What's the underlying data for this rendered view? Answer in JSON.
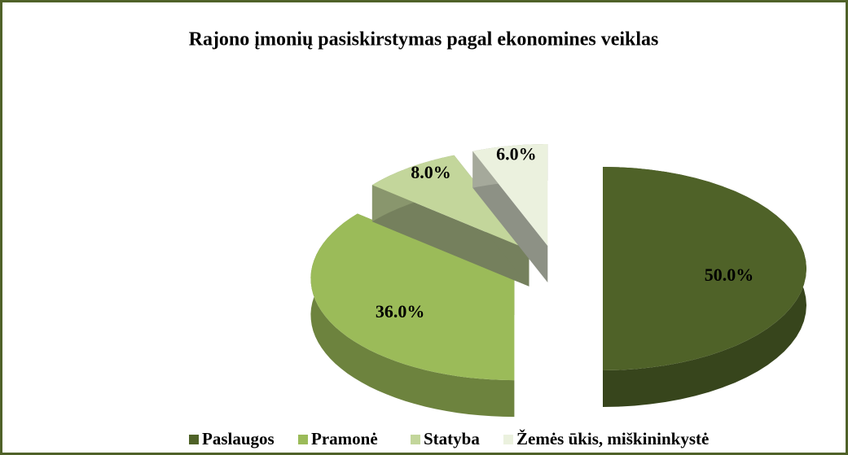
{
  "chart_data": {
    "type": "pie",
    "title": "Rajono įmonių pasiskirstymas pagal ekonomines veiklas",
    "categories": [
      "Paslaugos",
      "Pramonė",
      "Statyba",
      "Žemės ūkis, miškininkystė"
    ],
    "values": [
      50,
      36,
      8,
      6
    ],
    "value_labels": [
      "50.0%",
      "36.0%",
      "8.0%",
      "6.0%"
    ],
    "colors": [
      "#4f6228",
      "#9bbb59",
      "#c3d69b",
      "#ebf1de"
    ],
    "legend": "bottom"
  }
}
